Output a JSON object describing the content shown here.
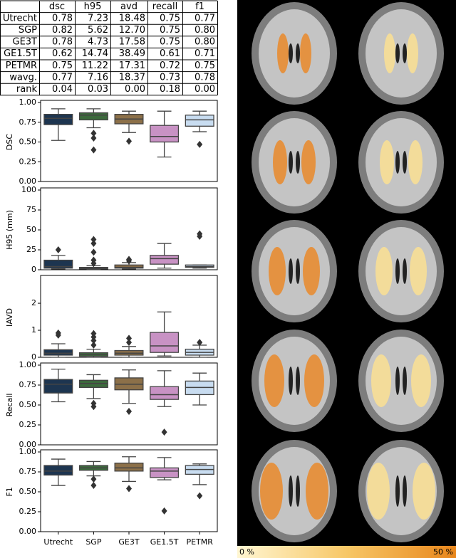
{
  "table": {
    "header": [
      "dsc",
      "h95",
      "avd",
      "recall",
      "f1"
    ],
    "rows": [
      [
        "Utrecht",
        "0.78",
        "7.23",
        "18.48",
        "0.75",
        "0.77"
      ],
      [
        "SGP",
        "0.82",
        "5.62",
        "12.70",
        "0.75",
        "0.80"
      ],
      [
        "GE3T",
        "0.78",
        "4.73",
        "17.58",
        "0.75",
        "0.80"
      ],
      [
        "GE1.5T",
        "0.62",
        "14.74",
        "38.49",
        "0.61",
        "0.71"
      ],
      [
        "PETMR",
        "0.75",
        "11.22",
        "17.31",
        "0.72",
        "0.75"
      ],
      [
        "wavg.",
        "0.77",
        "7.16",
        "18.37",
        "0.73",
        "0.78"
      ],
      [
        "rank",
        "0.04",
        "0.03",
        "0.00",
        "0.18",
        "0.00"
      ]
    ]
  },
  "chart_data": [
    {
      "type": "box",
      "ylabel": "DSC",
      "ylim": [
        0,
        1
      ],
      "yticks": [
        {
          "value": 0,
          "label": "0.00"
        },
        {
          "value": 0.25,
          "label": "0.25"
        },
        {
          "value": 0.5,
          "label": "0.50"
        },
        {
          "value": 0.75,
          "label": "0.75"
        },
        {
          "value": 1,
          "label": "1.00"
        }
      ],
      "colors": [
        "#1d3550",
        "#3c6a3c",
        "#8c7049",
        "#c892c4",
        "#c8dcf0"
      ],
      "boxes": [
        {
          "whislo": 0.52,
          "q1": 0.72,
          "med": 0.8,
          "q3": 0.85,
          "whishi": 0.92,
          "fliers": []
        },
        {
          "whislo": 0.68,
          "q1": 0.78,
          "med": 0.84,
          "q3": 0.87,
          "whishi": 0.92,
          "fliers": [
            0.61,
            0.55,
            0.4
          ]
        },
        {
          "whislo": 0.62,
          "q1": 0.73,
          "med": 0.79,
          "q3": 0.85,
          "whishi": 0.89,
          "fliers": [
            0.51
          ]
        },
        {
          "whislo": 0.31,
          "q1": 0.5,
          "med": 0.57,
          "q3": 0.71,
          "whishi": 0.89,
          "fliers": []
        },
        {
          "whislo": 0.63,
          "q1": 0.7,
          "med": 0.78,
          "q3": 0.84,
          "whishi": 0.89,
          "fliers": [
            0.47
          ]
        }
      ]
    },
    {
      "type": "box",
      "ylabel": "H95 (mm)",
      "ylim": [
        0,
        100
      ],
      "yticks": [
        0,
        25,
        50,
        75,
        100
      ],
      "colors": [
        "#1d3550",
        "#3c6a3c",
        "#8c7049",
        "#c892c4",
        "#c8dcf0"
      ],
      "boxes": [
        {
          "whislo": 1,
          "q1": 2,
          "med": 4,
          "q3": 12,
          "whishi": 18,
          "fliers": [
            25
          ]
        },
        {
          "whislo": 0,
          "q1": 1,
          "med": 2,
          "q3": 3,
          "whishi": 5,
          "fliers": [
            8,
            12,
            22,
            33,
            38
          ]
        },
        {
          "whislo": 1,
          "q1": 2,
          "med": 3,
          "q3": 6,
          "whishi": 9,
          "fliers": [
            11,
            13
          ]
        },
        {
          "whislo": 2,
          "q1": 7,
          "med": 14,
          "q3": 18,
          "whishi": 33,
          "fliers": []
        },
        {
          "whislo": 2,
          "q1": 3,
          "med": 4,
          "q3": 6,
          "whishi": 6,
          "fliers": [
            42,
            45
          ]
        }
      ]
    },
    {
      "type": "box",
      "ylabel": "IAVD",
      "ylim": [
        0,
        2.95
      ],
      "yticks": [
        0,
        1,
        2
      ],
      "colors": [
        "#1d3550",
        "#3c6a3c",
        "#8c7049",
        "#c892c4",
        "#c8dcf0"
      ],
      "boxes": [
        {
          "whislo": 0,
          "q1": 0.08,
          "med": 0.15,
          "q3": 0.28,
          "whishi": 0.5,
          "fliers": [
            0.82,
            0.9
          ]
        },
        {
          "whislo": 0,
          "q1": 0.04,
          "med": 0.1,
          "q3": 0.17,
          "whishi": 0.3,
          "fliers": [
            0.45,
            0.62,
            0.75,
            0.88
          ]
        },
        {
          "whislo": 0,
          "q1": 0.08,
          "med": 0.15,
          "q3": 0.25,
          "whishi": 0.4,
          "fliers": [
            0.55,
            0.7
          ]
        },
        {
          "whislo": 0.05,
          "q1": 0.18,
          "med": 0.42,
          "q3": 0.92,
          "whishi": 1.68,
          "fliers": []
        },
        {
          "whislo": 0,
          "q1": 0.08,
          "med": 0.18,
          "q3": 0.3,
          "whishi": 0.45,
          "fliers": [
            0.55
          ]
        }
      ]
    },
    {
      "type": "box",
      "ylabel": "Recall",
      "ylim": [
        0,
        1
      ],
      "yticks": [
        {
          "value": 0,
          "label": "0.00"
        },
        {
          "value": 0.25,
          "label": "0.25"
        },
        {
          "value": 0.5,
          "label": "0.50"
        },
        {
          "value": 0.75,
          "label": "0.75"
        },
        {
          "value": 1,
          "label": "1.00"
        }
      ],
      "colors": [
        "#1d3550",
        "#3c6a3c",
        "#8c7049",
        "#c892c4",
        "#c8dcf0"
      ],
      "boxes": [
        {
          "whislo": 0.54,
          "q1": 0.65,
          "med": 0.76,
          "q3": 0.82,
          "whishi": 0.95,
          "fliers": []
        },
        {
          "whislo": 0.58,
          "q1": 0.72,
          "med": 0.77,
          "q3": 0.81,
          "whishi": 0.88,
          "fliers": [
            0.52,
            0.48
          ]
        },
        {
          "whislo": 0.52,
          "q1": 0.69,
          "med": 0.76,
          "q3": 0.84,
          "whishi": 0.94,
          "fliers": [
            0.42
          ]
        },
        {
          "whislo": 0.48,
          "q1": 0.57,
          "med": 0.63,
          "q3": 0.73,
          "whishi": 0.93,
          "fliers": [
            0.16
          ]
        },
        {
          "whislo": 0.5,
          "q1": 0.63,
          "med": 0.72,
          "q3": 0.8,
          "whishi": 0.9,
          "fliers": []
        }
      ]
    },
    {
      "type": "box",
      "ylabel": "F1",
      "ylim": [
        0,
        1
      ],
      "yticks": [
        {
          "value": 0,
          "label": "0.00"
        },
        {
          "value": 0.25,
          "label": "0.25"
        },
        {
          "value": 0.5,
          "label": "0.50"
        },
        {
          "value": 0.75,
          "label": "0.75"
        },
        {
          "value": 1,
          "label": "1.00"
        }
      ],
      "categories": [
        "Utrecht",
        "SGP",
        "GE3T",
        "GE1.5T",
        "PETMR"
      ],
      "colors": [
        "#1d3550",
        "#3c6a3c",
        "#8c7049",
        "#c892c4",
        "#c8dcf0"
      ],
      "boxes": [
        {
          "whislo": 0.58,
          "q1": 0.71,
          "med": 0.76,
          "q3": 0.83,
          "whishi": 0.91,
          "fliers": []
        },
        {
          "whislo": 0.7,
          "q1": 0.77,
          "med": 0.8,
          "q3": 0.83,
          "whishi": 0.88,
          "fliers": [
            0.66,
            0.58
          ]
        },
        {
          "whislo": 0.63,
          "q1": 0.76,
          "med": 0.8,
          "q3": 0.86,
          "whishi": 0.94,
          "fliers": [
            0.54
          ]
        },
        {
          "whislo": 0.65,
          "q1": 0.68,
          "med": 0.76,
          "q3": 0.8,
          "whishi": 0.93,
          "fliers": [
            0.26
          ]
        },
        {
          "whislo": 0.59,
          "q1": 0.72,
          "med": 0.78,
          "q3": 0.83,
          "whishi": 0.85,
          "fliers": [
            0.45
          ]
        }
      ]
    }
  ],
  "colorbar": {
    "min_label": "0 %",
    "max_label": "50 %"
  }
}
